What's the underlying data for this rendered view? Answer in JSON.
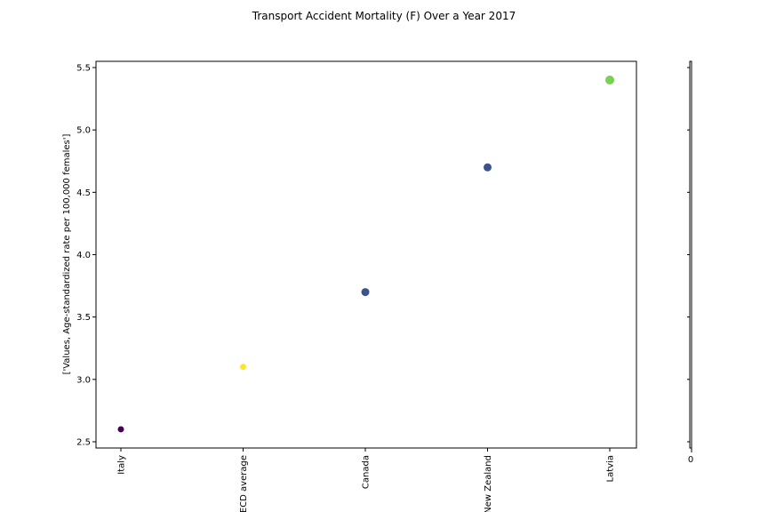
{
  "chart_data": {
    "type": "scatter",
    "title": "Transport Accident Mortality (F) Over a Year 2017",
    "xlabel": "",
    "ylabel": "['Values, Age-standardized rate per 100,000 females']",
    "categories": [
      "Italy",
      "OECD average",
      "Canada",
      "New Zealand",
      "Latvia"
    ],
    "values": [
      2.6,
      3.1,
      3.7,
      4.7,
      5.4
    ],
    "point_colors": [
      "#440154",
      "#fde725",
      "#3b528b",
      "#3b528b",
      "#7ad151"
    ],
    "point_sizes": [
      3.5,
      3.5,
      4.5,
      4.5,
      5
    ],
    "ylim": [
      2.45,
      5.55
    ],
    "yticks": [
      2.5,
      3.0,
      3.5,
      4.0,
      4.5,
      5.0,
      5.5
    ],
    "ytick_labels": [
      "2.5",
      "3.0",
      "3.5",
      "4.0",
      "4.5",
      "5.0",
      "5.5"
    ],
    "grid": false,
    "colorbar": {
      "tick_label": "0"
    }
  }
}
